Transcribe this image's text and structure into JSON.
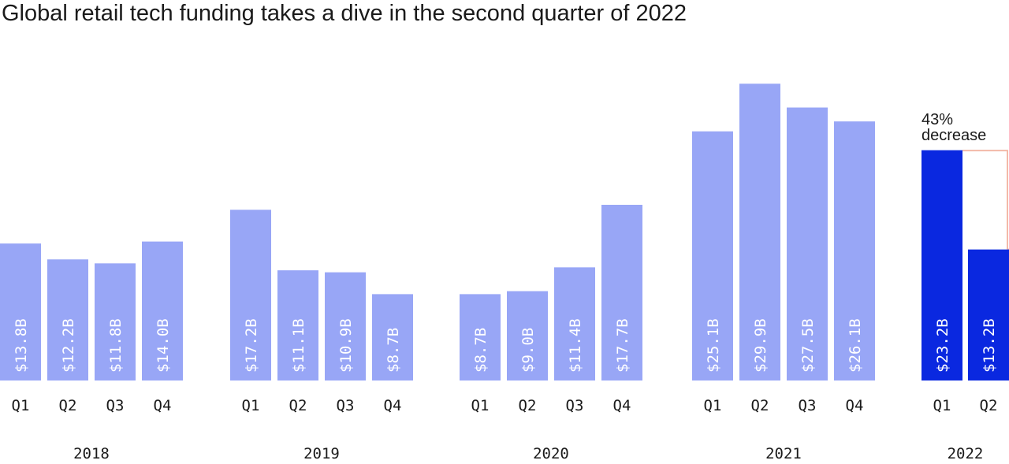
{
  "chart_data": {
    "type": "bar",
    "title": "Global retail tech funding takes a dive in the second quarter of 2022",
    "unit": "$B",
    "ylim": [
      0,
      30
    ],
    "colors": {
      "default": "#98a6f6",
      "highlight": "#0a28e0",
      "connector": "#f3b9a8"
    },
    "groups": [
      {
        "year": "2018",
        "quarters": [
          "Q1",
          "Q2",
          "Q3",
          "Q4"
        ],
        "values": [
          13.8,
          12.2,
          11.8,
          14.0
        ],
        "labels": [
          "$13.8B",
          "$12.2B",
          "$11.8B",
          "$14.0B"
        ]
      },
      {
        "year": "2019",
        "quarters": [
          "Q1",
          "Q2",
          "Q3",
          "Q4"
        ],
        "values": [
          17.2,
          11.1,
          10.9,
          8.7
        ],
        "labels": [
          "$17.2B",
          "$11.1B",
          "$10.9B",
          "$8.7B"
        ]
      },
      {
        "year": "2020",
        "quarters": [
          "Q1",
          "Q2",
          "Q3",
          "Q4"
        ],
        "values": [
          8.7,
          9.0,
          11.4,
          17.7
        ],
        "labels": [
          "$8.7B",
          "$9.0B",
          "$11.4B",
          "$17.7B"
        ]
      },
      {
        "year": "2021",
        "quarters": [
          "Q1",
          "Q2",
          "Q3",
          "Q4"
        ],
        "values": [
          25.1,
          29.9,
          27.5,
          26.1
        ],
        "labels": [
          "$25.1B",
          "$29.9B",
          "$27.5B",
          "$26.1B"
        ]
      },
      {
        "year": "2022",
        "quarters": [
          "Q1",
          "Q2"
        ],
        "values": [
          23.2,
          13.2
        ],
        "labels": [
          "$23.2B",
          "$13.2B"
        ],
        "highlight": true
      }
    ],
    "annotation": {
      "line1": "43%",
      "line2": "decrease"
    }
  }
}
